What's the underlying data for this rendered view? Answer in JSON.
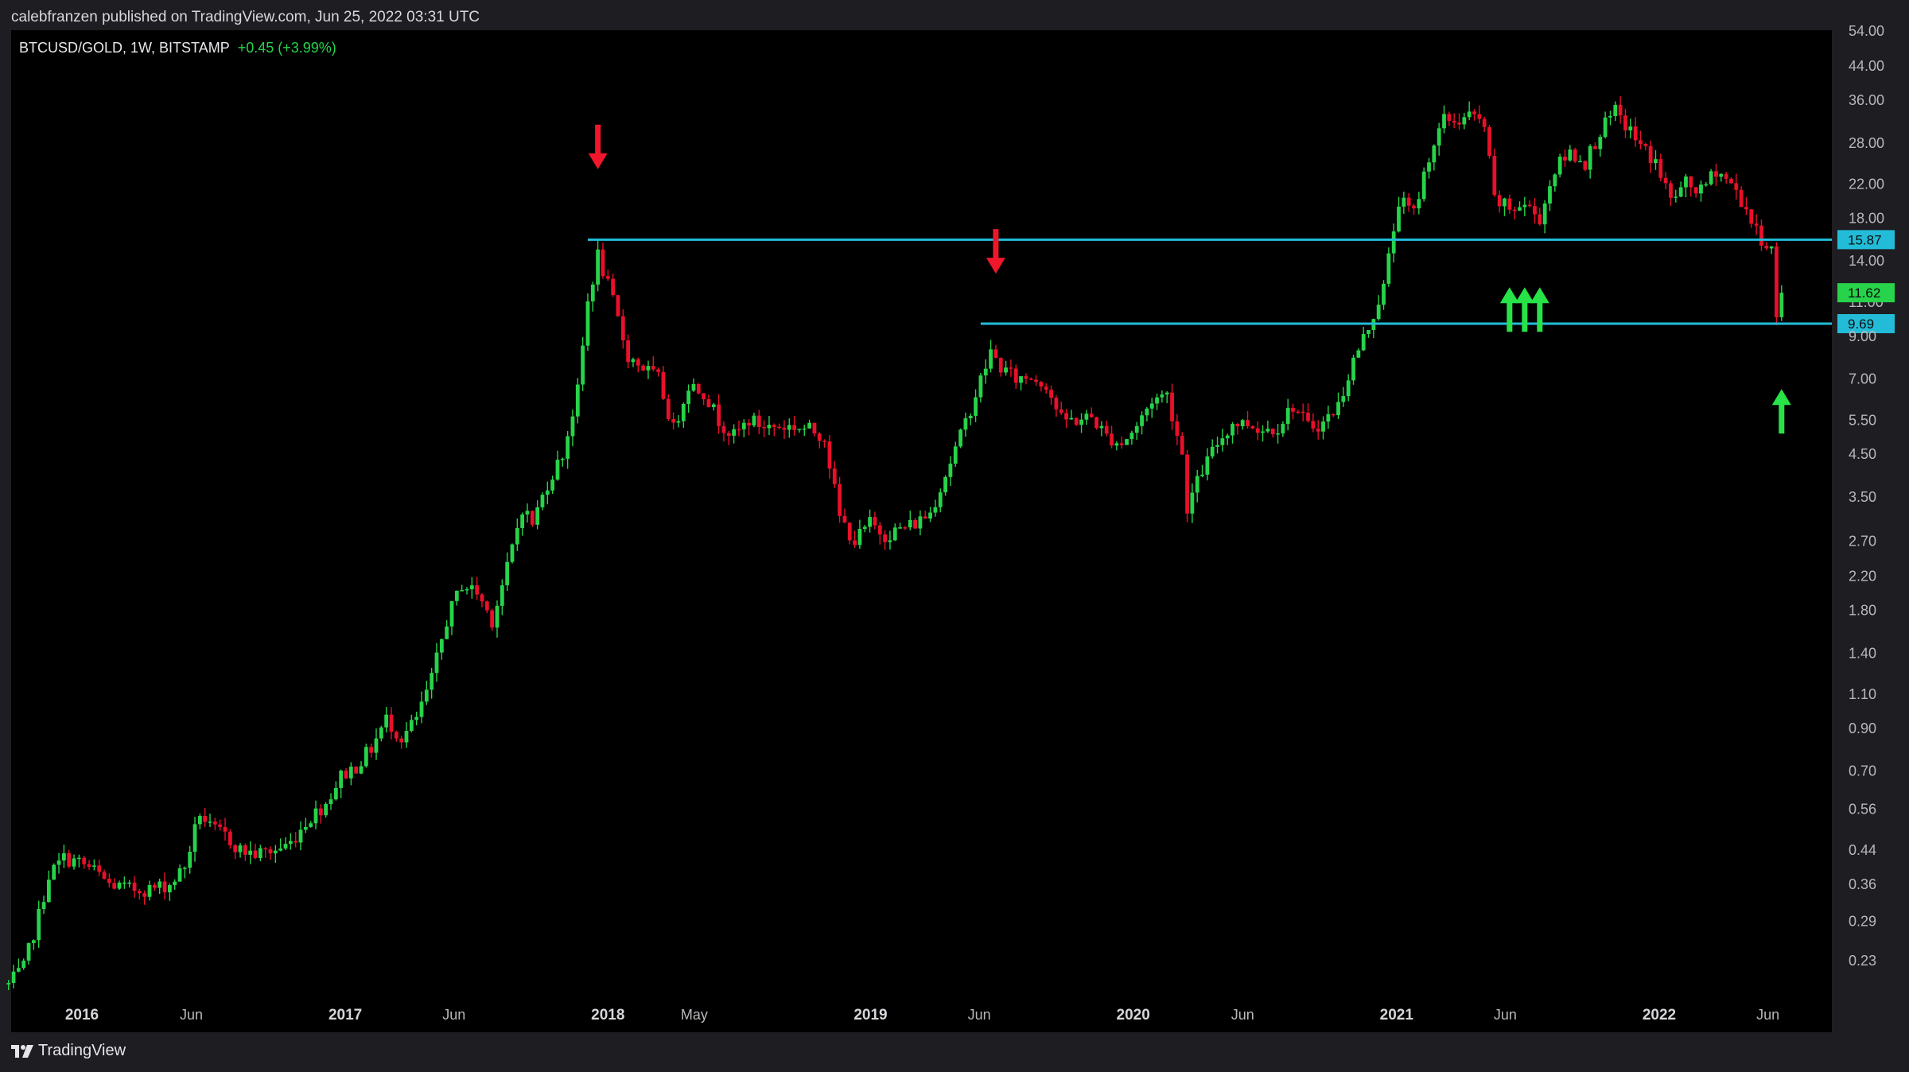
{
  "header": {
    "publisher_line": "calebfranzen published on TradingView.com, Jun 25, 2022 03:31 UTC"
  },
  "footer": {
    "brand": "TradingView"
  },
  "colors": {
    "up": "#27d34a",
    "down": "#e8102a",
    "level_line": "#22bcd8",
    "last_price_badge": "#27d34a",
    "up_arrow": "#27e348",
    "down_arrow": "#f0162c"
  },
  "chart_data": {
    "type": "candlestick",
    "symbol_label": "BTCUSD/GOLD, 1W, BITSTAMP",
    "change_label": "+0.45 (+3.99%)",
    "y_scale": "log",
    "ylim": [
      0.19,
      56
    ],
    "y_ticks": [
      "0.23",
      "0.29",
      "0.36",
      "0.44",
      "0.56",
      "0.70",
      "0.90",
      "1.10",
      "1.40",
      "1.80",
      "2.20",
      "2.70",
      "3.50",
      "4.50",
      "5.50",
      "7.00",
      "9.00",
      "11.00",
      "14.00",
      "18.00",
      "22.00",
      "28.00",
      "36.00",
      "44.00",
      "54.00"
    ],
    "x_labels": [
      {
        "label": "2016",
        "date": "2016-01-01",
        "bold": true
      },
      {
        "label": "Jun",
        "date": "2016-06-01",
        "bold": false
      },
      {
        "label": "2017",
        "date": "2017-01-01",
        "bold": true
      },
      {
        "label": "Jun",
        "date": "2017-06-01",
        "bold": false
      },
      {
        "label": "2018",
        "date": "2018-01-01",
        "bold": true
      },
      {
        "label": "May",
        "date": "2018-05-01",
        "bold": false
      },
      {
        "label": "2019",
        "date": "2019-01-01",
        "bold": true
      },
      {
        "label": "Jun",
        "date": "2019-06-01",
        "bold": false
      },
      {
        "label": "2020",
        "date": "2020-01-01",
        "bold": true
      },
      {
        "label": "Jun",
        "date": "2020-06-01",
        "bold": false
      },
      {
        "label": "2021",
        "date": "2021-01-01",
        "bold": true
      },
      {
        "label": "Jun",
        "date": "2021-06-01",
        "bold": false
      },
      {
        "label": "2022",
        "date": "2022-01-01",
        "bold": true
      },
      {
        "label": "Jun",
        "date": "2022-06-01",
        "bold": false
      }
    ],
    "price_path": [
      [
        "2015-09-21",
        0.2
      ],
      [
        "2015-10-12",
        0.22
      ],
      [
        "2015-11-02",
        0.3
      ],
      [
        "2015-11-16",
        0.38
      ],
      [
        "2015-12-07",
        0.42
      ],
      [
        "2015-12-28",
        0.41
      ],
      [
        "2016-01-18",
        0.39
      ],
      [
        "2016-02-08",
        0.36
      ],
      [
        "2016-03-07",
        0.35
      ],
      [
        "2016-04-04",
        0.35
      ],
      [
        "2016-05-02",
        0.36
      ],
      [
        "2016-05-23",
        0.4
      ],
      [
        "2016-06-13",
        0.55
      ],
      [
        "2016-06-27",
        0.5
      ],
      [
        "2016-07-18",
        0.48
      ],
      [
        "2016-08-08",
        0.44
      ],
      [
        "2016-08-29",
        0.43
      ],
      [
        "2016-09-26",
        0.44
      ],
      [
        "2016-10-17",
        0.46
      ],
      [
        "2016-11-07",
        0.52
      ],
      [
        "2016-12-05",
        0.58
      ],
      [
        "2016-12-26",
        0.68
      ],
      [
        "2017-01-16",
        0.72
      ],
      [
        "2017-02-06",
        0.8
      ],
      [
        "2017-02-27",
        0.95
      ],
      [
        "2017-03-20",
        0.85
      ],
      [
        "2017-04-10",
        0.95
      ],
      [
        "2017-05-01",
        1.2
      ],
      [
        "2017-05-22",
        1.7
      ],
      [
        "2017-06-12",
        2.1
      ],
      [
        "2017-07-03",
        2.0
      ],
      [
        "2017-07-24",
        1.7
      ],
      [
        "2017-08-14",
        2.3
      ],
      [
        "2017-09-04",
        3.3
      ],
      [
        "2017-09-18",
        3.0
      ],
      [
        "2017-10-09",
        3.8
      ],
      [
        "2017-10-30",
        4.5
      ],
      [
        "2017-11-20",
        6.5
      ],
      [
        "2017-12-04",
        11.0
      ],
      [
        "2017-12-18",
        14.5
      ],
      [
        "2018-01-08",
        11.0
      ],
      [
        "2018-01-29",
        8.0
      ],
      [
        "2018-02-19",
        7.5
      ],
      [
        "2018-03-12",
        7.0
      ],
      [
        "2018-04-02",
        5.2
      ],
      [
        "2018-04-23",
        6.8
      ],
      [
        "2018-05-14",
        6.5
      ],
      [
        "2018-06-04",
        5.5
      ],
      [
        "2018-06-25",
        5.0
      ],
      [
        "2018-07-16",
        5.5
      ],
      [
        "2018-08-06",
        5.3
      ],
      [
        "2018-08-27",
        5.3
      ],
      [
        "2018-09-17",
        5.3
      ],
      [
        "2018-10-08",
        5.2
      ],
      [
        "2018-10-29",
        5.0
      ],
      [
        "2018-11-19",
        3.1
      ],
      [
        "2018-12-10",
        2.7
      ],
      [
        "2018-12-31",
        3.0
      ],
      [
        "2019-01-21",
        2.8
      ],
      [
        "2019-02-11",
        2.9
      ],
      [
        "2019-03-04",
        3.0
      ],
      [
        "2019-03-25",
        3.2
      ],
      [
        "2019-04-15",
        4.0
      ],
      [
        "2019-05-06",
        5.0
      ],
      [
        "2019-05-27",
        6.4
      ],
      [
        "2019-06-17",
        8.2
      ],
      [
        "2019-07-01",
        7.5
      ],
      [
        "2019-07-22",
        7.0
      ],
      [
        "2019-08-12",
        7.1
      ],
      [
        "2019-09-02",
        6.8
      ],
      [
        "2019-09-23",
        5.5
      ],
      [
        "2019-10-14",
        5.5
      ],
      [
        "2019-11-04",
        5.6
      ],
      [
        "2019-11-25",
        5.0
      ],
      [
        "2019-12-16",
        4.8
      ],
      [
        "2020-01-06",
        5.3
      ],
      [
        "2020-01-27",
        6.2
      ],
      [
        "2020-02-17",
        6.4
      ],
      [
        "2020-03-09",
        4.5
      ],
      [
        "2020-03-16",
        3.3
      ],
      [
        "2020-04-06",
        4.1
      ],
      [
        "2020-04-27",
        4.8
      ],
      [
        "2020-05-18",
        5.4
      ],
      [
        "2020-06-08",
        5.4
      ],
      [
        "2020-06-29",
        5.2
      ],
      [
        "2020-07-20",
        5.3
      ],
      [
        "2020-08-10",
        6.0
      ],
      [
        "2020-08-31",
        5.3
      ],
      [
        "2020-09-21",
        5.4
      ],
      [
        "2020-10-12",
        6.0
      ],
      [
        "2020-11-02",
        7.8
      ],
      [
        "2020-11-23",
        9.5
      ],
      [
        "2020-12-14",
        12.0
      ],
      [
        "2021-01-04",
        20.0
      ],
      [
        "2021-01-25",
        18.5
      ],
      [
        "2021-02-15",
        26.0
      ],
      [
        "2021-03-08",
        32.0
      ],
      [
        "2021-03-29",
        32.0
      ],
      [
        "2021-04-12",
        33.0
      ],
      [
        "2021-05-03",
        31.0
      ],
      [
        "2021-05-17",
        20.0
      ],
      [
        "2021-06-07",
        19.0
      ],
      [
        "2021-06-28",
        19.5
      ],
      [
        "2021-07-19",
        18.0
      ],
      [
        "2021-08-09",
        24.0
      ],
      [
        "2021-08-30",
        26.5
      ],
      [
        "2021-09-20",
        25.0
      ],
      [
        "2021-10-11",
        30.0
      ],
      [
        "2021-11-01",
        33.5
      ],
      [
        "2021-11-22",
        30.0
      ],
      [
        "2021-12-06",
        27.5
      ],
      [
        "2021-12-27",
        25.0
      ],
      [
        "2022-01-17",
        20.0
      ],
      [
        "2022-02-07",
        22.0
      ],
      [
        "2022-02-28",
        21.0
      ],
      [
        "2022-03-21",
        24.0
      ],
      [
        "2022-04-11",
        22.0
      ],
      [
        "2022-05-02",
        19.0
      ],
      [
        "2022-05-16",
        16.5
      ],
      [
        "2022-06-06",
        15.0
      ],
      [
        "2022-06-13",
        10.0
      ],
      [
        "2022-06-20",
        11.62
      ]
    ],
    "levels": [
      {
        "value": 15.87,
        "label": "15.87",
        "start": "2017-12-04"
      },
      {
        "value": 9.69,
        "label": "9.69",
        "start": "2019-06-03"
      }
    ],
    "last_price": {
      "value": 11.62,
      "label": "11.62"
    },
    "annotations": {
      "down_arrows": [
        {
          "date": "2017-12-18",
          "value": 24.0
        },
        {
          "date": "2019-06-24",
          "value": 13.0
        }
      ],
      "up_arrows": [
        {
          "date": "2021-06-07",
          "value": 12.0
        },
        {
          "date": "2021-06-28",
          "value": 12.0
        },
        {
          "date": "2021-07-19",
          "value": 12.0
        },
        {
          "date": "2022-06-20",
          "value": 6.6
        }
      ]
    }
  }
}
